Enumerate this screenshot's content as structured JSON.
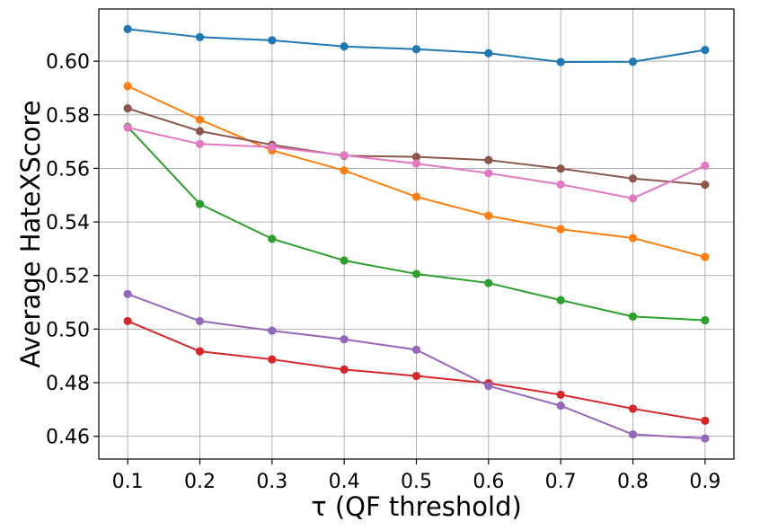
{
  "chart_data": {
    "type": "line",
    "title": "",
    "xlabel": "τ (QF threshold)",
    "ylabel": "Average HateXScore",
    "x": [
      0.1,
      0.2,
      0.3,
      0.4,
      0.5,
      0.6,
      0.7,
      0.8,
      0.9
    ],
    "x_tick_labels": [
      "0.1",
      "0.2",
      "0.3",
      "0.4",
      "0.5",
      "0.6",
      "0.7",
      "0.8",
      "0.9"
    ],
    "y_ticks": [
      0.46,
      0.48,
      0.5,
      0.52,
      0.54,
      0.56,
      0.58,
      0.6
    ],
    "y_tick_labels": [
      "0.46",
      "0.48",
      "0.50",
      "0.52",
      "0.54",
      "0.56",
      "0.58",
      "0.60"
    ],
    "xlim": [
      0.06,
      0.94
    ],
    "ylim": [
      0.4515,
      0.6195
    ],
    "grid": true,
    "marker": "circle",
    "series": [
      {
        "name": "series-blue",
        "color": "#1f77b4",
        "values": [
          0.612,
          0.609,
          0.6078,
          0.6055,
          0.6045,
          0.603,
          0.5997,
          0.5998,
          0.6042
        ]
      },
      {
        "name": "series-orange",
        "color": "#ff7f0e",
        "values": [
          0.5907,
          0.5782,
          0.5667,
          0.5592,
          0.5494,
          0.5423,
          0.5373,
          0.534,
          0.5269
        ]
      },
      {
        "name": "series-green",
        "color": "#2ca02c",
        "values": [
          0.5755,
          0.5467,
          0.5337,
          0.5256,
          0.5206,
          0.5172,
          0.5108,
          0.5047,
          0.5033
        ]
      },
      {
        "name": "series-red",
        "color": "#d62728",
        "values": [
          0.503,
          0.4917,
          0.4887,
          0.4849,
          0.4825,
          0.4798,
          0.4755,
          0.4703,
          0.4658
        ]
      },
      {
        "name": "series-purple",
        "color": "#9467bd",
        "values": [
          0.5131,
          0.503,
          0.4994,
          0.4962,
          0.4923,
          0.4788,
          0.4714,
          0.4607,
          0.4592
        ]
      },
      {
        "name": "series-brown",
        "color": "#8c564b",
        "values": [
          0.5824,
          0.5739,
          0.5688,
          0.5647,
          0.5643,
          0.5631,
          0.5599,
          0.5562,
          0.5539
        ]
      },
      {
        "name": "series-pink",
        "color": "#e377c2",
        "values": [
          0.5752,
          0.5691,
          0.568,
          0.5649,
          0.5618,
          0.5582,
          0.554,
          0.5488,
          0.561
        ]
      }
    ]
  }
}
